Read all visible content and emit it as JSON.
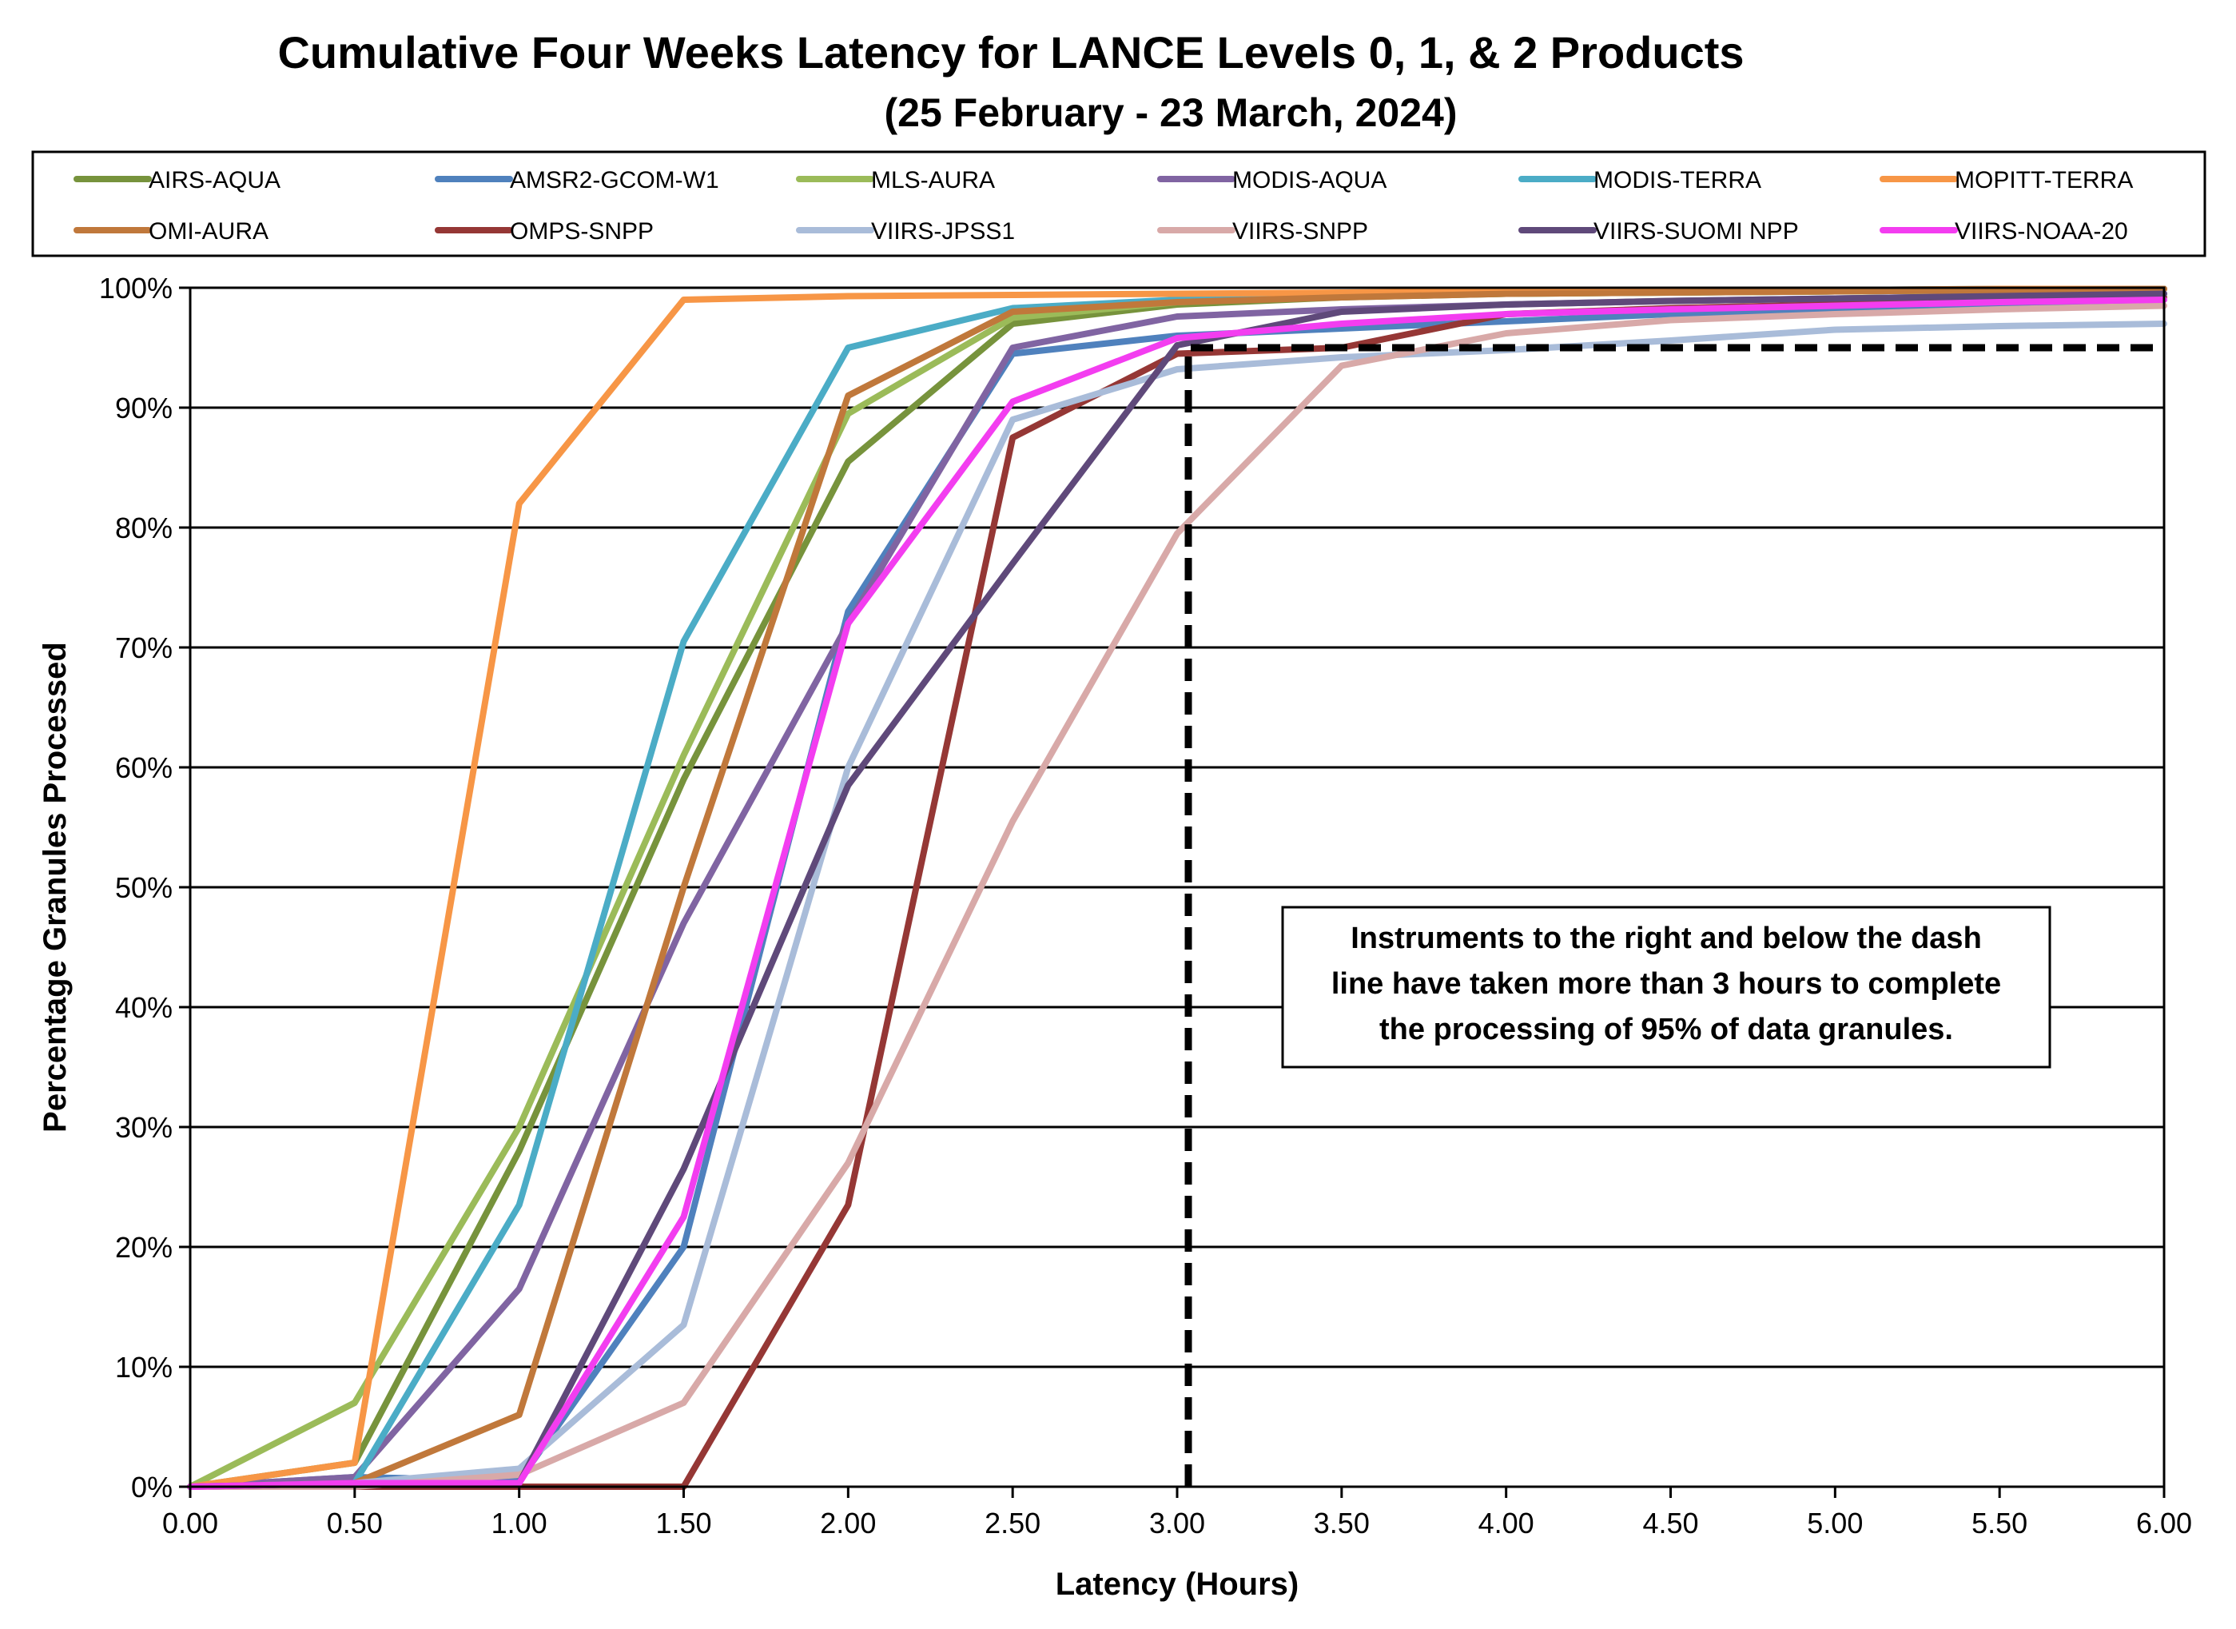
{
  "chart_data": {
    "type": "line",
    "title": "Cumulative Four Weeks Latency  for LANCE Levels 0, 1, & 2 Products",
    "subtitle": "(25  February   -  23  March,  2024)",
    "xlabel": "Latency (Hours)",
    "ylabel": "Percentage Granules Processed",
    "x": [
      0.0,
      0.5,
      1.0,
      1.5,
      2.0,
      2.5,
      3.0,
      3.5,
      4.0,
      4.5,
      5.0,
      5.5,
      6.0
    ],
    "x_tick_labels": [
      "0.00",
      "0.50",
      "1.00",
      "1.50",
      "2.00",
      "2.50",
      "3.00",
      "3.50",
      "4.00",
      "4.50",
      "5.00",
      "5.50",
      "6.00"
    ],
    "y_tick_labels": [
      "0%",
      "10%",
      "20%",
      "30%",
      "40%",
      "50%",
      "60%",
      "70%",
      "80%",
      "90%",
      "100%"
    ],
    "xlim": [
      0,
      6
    ],
    "ylim": [
      0,
      100
    ],
    "grid": "horizontal",
    "legend_position": "top",
    "legend_columns": 6,
    "series": [
      {
        "name": "AIRS-AQUA",
        "color": "#77933C",
        "values": [
          0,
          2,
          28,
          59,
          85.5,
          97,
          98.6,
          99.2,
          99.5,
          99.6,
          99.7,
          99.8,
          99.9
        ]
      },
      {
        "name": "AMSR2-GCOM-W1",
        "color": "#4F81BD",
        "values": [
          0,
          0.8,
          0.5,
          20,
          73,
          94.5,
          96,
          96.6,
          97.2,
          97.8,
          98.3,
          98.7,
          99
        ]
      },
      {
        "name": "MLS-AURA",
        "color": "#9BBB59",
        "values": [
          0,
          7,
          30,
          61,
          89.5,
          97.5,
          98.8,
          99.3,
          99.5,
          99.6,
          99.7,
          99.8,
          99.9
        ]
      },
      {
        "name": "MODIS-AQUA",
        "color": "#8064A2",
        "values": [
          0,
          0.8,
          16.5,
          47,
          72,
          95,
          97.6,
          98.2,
          98.6,
          98.9,
          99.1,
          99.3,
          99.5
        ]
      },
      {
        "name": "MODIS-TERRA",
        "color": "#4BACC6",
        "values": [
          0,
          0.3,
          23.5,
          70.5,
          95,
          98.3,
          99,
          99.4,
          99.6,
          99.7,
          99.8,
          99.9,
          99.9
        ]
      },
      {
        "name": "MOPITT-TERRA",
        "color": "#F79646",
        "values": [
          0,
          2,
          82,
          99,
          99.3,
          99.4,
          99.5,
          99.6,
          99.7,
          99.8,
          99.8,
          99.9,
          99.9
        ]
      },
      {
        "name": "OMI-AURA",
        "color": "#C0783B",
        "values": [
          0,
          0.3,
          6,
          50,
          91,
          98,
          98.8,
          99.2,
          99.5,
          99.6,
          99.7,
          99.8,
          99.9
        ]
      },
      {
        "name": "OMPS-SNPP",
        "color": "#953735",
        "values": [
          0,
          0,
          0,
          0,
          23.5,
          87.5,
          94.5,
          95,
          97.8,
          98.3,
          98.6,
          99,
          99.2
        ]
      },
      {
        "name": "VIIRS-JPSS1",
        "color": "#A9BCD9",
        "values": [
          0,
          0.3,
          1.5,
          13.5,
          60,
          89,
          93.2,
          94.2,
          94.8,
          95.6,
          96.5,
          96.8,
          97
        ]
      },
      {
        "name": "VIIRS-SNPP",
        "color": "#D8A9A8",
        "values": [
          0,
          0,
          1,
          7,
          27,
          55.5,
          79.5,
          93.5,
          96.2,
          97.3,
          97.8,
          98.2,
          98.5
        ]
      },
      {
        "name": "VIIRS-SUOMI NPP",
        "color": "#5F497A",
        "values": [
          0,
          0.3,
          0.3,
          26.5,
          58.5,
          77,
          95.2,
          98,
          98.6,
          98.9,
          99.1,
          99.3,
          99.5
        ]
      },
      {
        "name": "VIIRS-NOAA-20",
        "color": "#F33DF0",
        "values": [
          0,
          0.3,
          0.3,
          22.5,
          72,
          90.5,
          95.8,
          97,
          97.8,
          98.2,
          98.5,
          98.8,
          99
        ]
      }
    ],
    "threshold_line": {
      "x": 3.0,
      "y": 95,
      "style": "dashed",
      "color": "#000000"
    },
    "annotation": {
      "lines": [
        "Instruments to the right and below the dash",
        "line have taken more than 3 hours to complete",
        "the processing of 95% of data granules."
      ]
    }
  }
}
